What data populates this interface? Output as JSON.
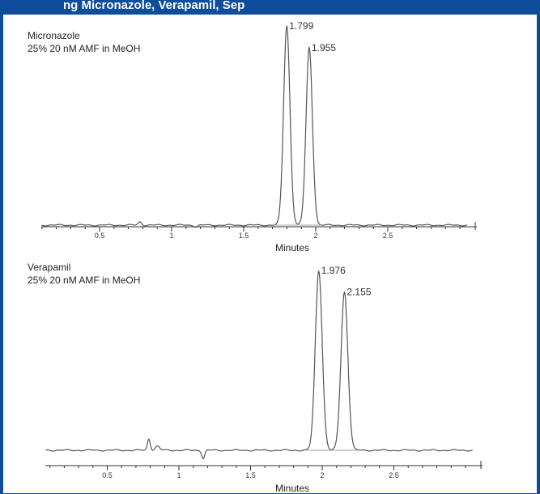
{
  "header": {
    "title_visible": "ng         Micronazole,                    Verapamil,        Sep"
  },
  "chart_data": [
    {
      "type": "line",
      "sample": "Micronazole",
      "condition": "25% 20 nM AMF in MeOH",
      "xlabel": "Minutes",
      "ylabel": "",
      "xlim": [
        0,
        3.05
      ],
      "x_ticks": [
        0.5,
        1,
        1.5,
        2,
        2.5
      ],
      "x_tick_labels": [
        "0.5",
        "1",
        "1.5",
        "2",
        "2.5"
      ],
      "peaks": [
        {
          "retention_time": 1.799,
          "label": "1.799",
          "relative_height": 1.0
        },
        {
          "retention_time": 1.955,
          "label": "1.955",
          "relative_height": 0.89
        }
      ],
      "grid": false,
      "line_color": "#555555"
    },
    {
      "type": "line",
      "sample": "Verapamil",
      "condition": "25% 20 nM AMF in MeOH",
      "xlabel": "Minutes",
      "ylabel": "",
      "xlim": [
        0,
        3.05
      ],
      "x_ticks": [
        0.5,
        1,
        1.5,
        2,
        2.5
      ],
      "x_tick_labels": [
        "0.5",
        "1",
        "1.5",
        "2",
        "2.5"
      ],
      "peaks": [
        {
          "retention_time": 1.976,
          "label": "1.976",
          "relative_height": 1.0
        },
        {
          "retention_time": 2.155,
          "label": "2.155",
          "relative_height": 0.88
        }
      ],
      "grid": false,
      "line_color": "#555555"
    }
  ]
}
